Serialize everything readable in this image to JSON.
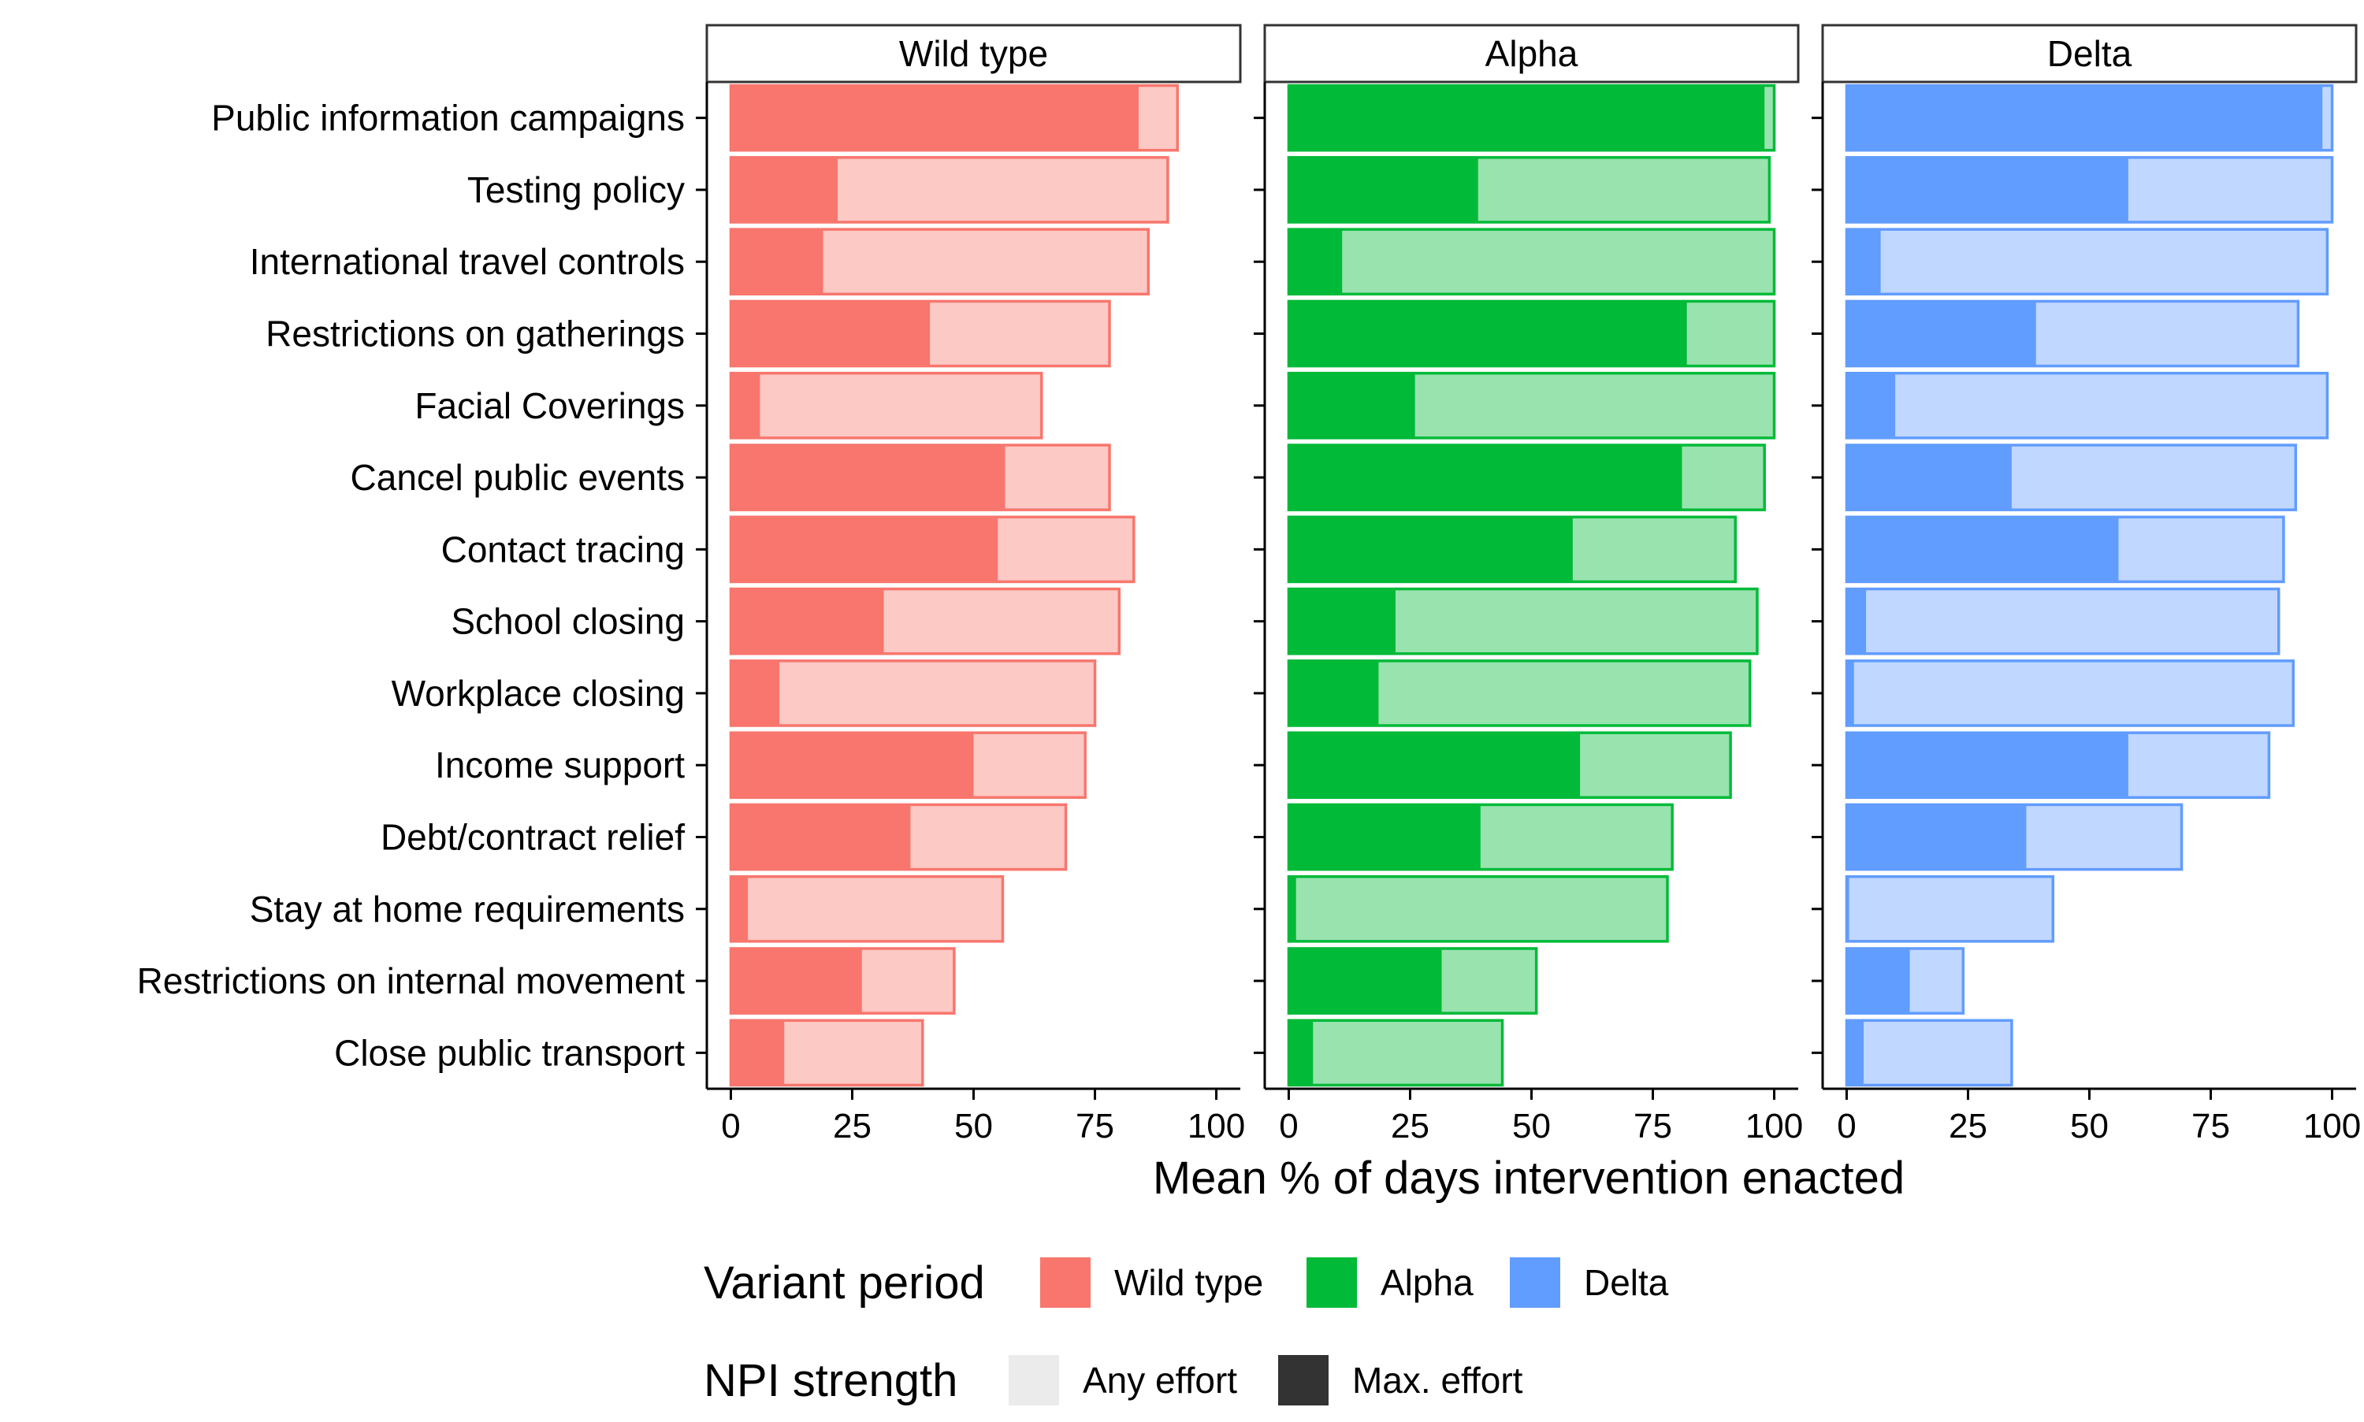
{
  "chart_data": {
    "type": "bar",
    "orientation": "horizontal",
    "stacked_layers": [
      "Max. effort",
      "Any effort"
    ],
    "xlabel": "Mean % of days intervention enacted",
    "xlim": [
      0,
      100
    ],
    "xticks": [
      "0",
      "25",
      "50",
      "75",
      "100"
    ],
    "categories": [
      "Public information campaigns",
      "Testing policy",
      "International travel controls",
      "Restrictions on gatherings",
      "Facial Coverings",
      "Cancel public events",
      "Contact tracing",
      "School closing",
      "Workplace closing",
      "Income support",
      "Debt/contract relief",
      "Stay at home requirements",
      "Restrictions on internal movement",
      "Close public transport"
    ],
    "panels": [
      {
        "name": "Wild type",
        "color": "#F8766D",
        "light_color": "#FCC9C5",
        "any_effort": [
          92,
          90,
          86,
          78,
          64,
          78,
          83,
          80,
          75,
          73,
          69,
          56,
          46,
          39.5
        ],
        "max_effort": [
          84,
          22,
          19,
          41,
          6,
          56.5,
          55,
          31.5,
          10,
          50,
          37,
          3.5,
          27,
          11
        ]
      },
      {
        "name": "Alpha",
        "color": "#00BA38",
        "light_color": "#99E3AF",
        "any_effort": [
          100,
          99,
          100,
          100,
          100,
          98,
          92,
          96.5,
          95,
          91,
          79,
          78,
          51,
          44
        ],
        "max_effort": [
          98,
          39,
          11,
          82,
          26,
          81,
          58.5,
          22,
          18.5,
          60,
          39.5,
          1.5,
          31.5,
          5
        ]
      },
      {
        "name": "Delta",
        "color": "#619CFF",
        "light_color": "#C0D7FF",
        "any_effort": [
          100,
          100,
          99,
          93,
          99,
          92.5,
          90,
          89,
          92,
          87,
          69,
          42.5,
          24,
          34
        ],
        "max_effort": [
          98,
          58,
          7,
          39,
          10,
          34,
          56,
          4,
          1.5,
          58,
          37,
          0.5,
          13,
          3.5
        ]
      }
    ],
    "legend": {
      "position": "bottom",
      "variant_title": "Variant period",
      "variant_items": [
        {
          "label": "Wild type",
          "color": "#F8766D"
        },
        {
          "label": "Alpha",
          "color": "#00BA38"
        },
        {
          "label": "Delta",
          "color": "#619CFF"
        }
      ],
      "strength_title": "NPI strength",
      "strength_items": [
        {
          "label": "Any effort",
          "color": "#EBEBEB"
        },
        {
          "label": "Max. effort",
          "color": "#333333"
        }
      ]
    },
    "grid": false
  }
}
